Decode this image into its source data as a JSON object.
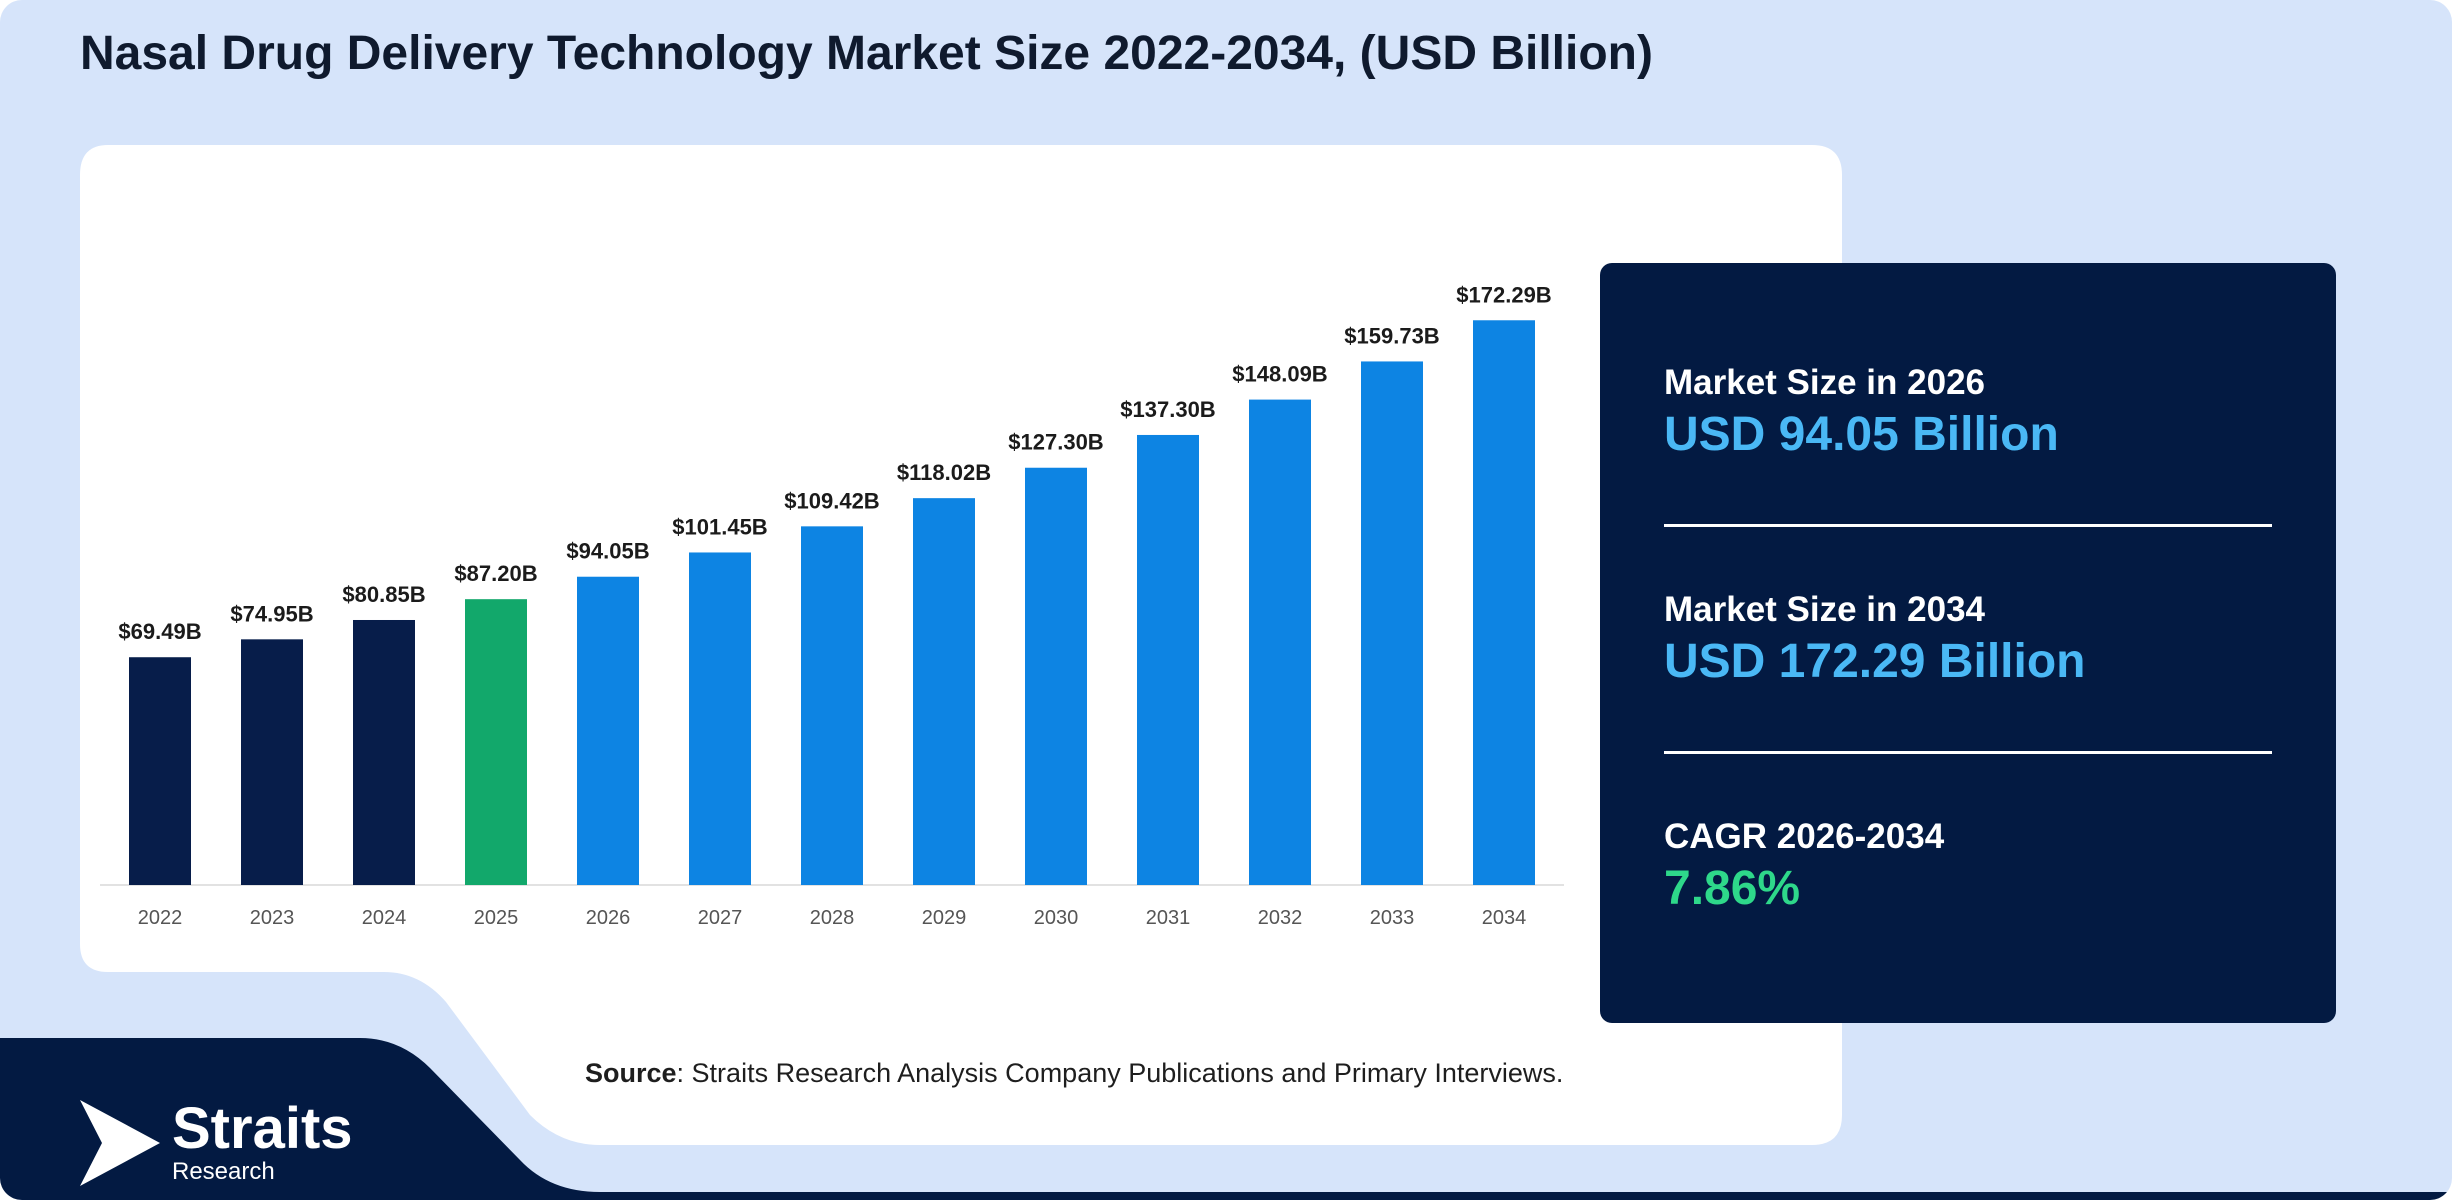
{
  "page": {
    "title": "Nasal Drug Delivery Technology Market Size 2022-2034, (USD Billion)"
  },
  "colors": {
    "background": "#d6e4fa",
    "navy": "#031a42",
    "historical_bar": "#071d4a",
    "base_year_bar": "#12a86b",
    "forecast_bar": "#0d84e3",
    "value_blue": "#4ab8f5",
    "cagr_green": "#2ed88a"
  },
  "chart_data": {
    "type": "bar",
    "title": "",
    "xlabel": "",
    "ylabel": "",
    "categories": [
      "2022",
      "2023",
      "2024",
      "2025",
      "2026",
      "2027",
      "2028",
      "2029",
      "2030",
      "2031",
      "2032",
      "2033",
      "2034"
    ],
    "values": [
      69.49,
      74.95,
      80.85,
      87.2,
      94.05,
      101.45,
      109.42,
      118.02,
      127.3,
      137.3,
      148.09,
      159.73,
      172.29
    ],
    "data_labels": [
      "$69.49B",
      "$74.95B",
      "$80.85B",
      "$87.20B",
      "$94.05B",
      "$101.45B",
      "$109.42B",
      "$118.02B",
      "$127.30B",
      "$137.30B",
      "$148.09B",
      "$159.73B",
      "$172.29B"
    ],
    "bar_colors": [
      "#071d4a",
      "#071d4a",
      "#071d4a",
      "#12a86b",
      "#0d84e3",
      "#0d84e3",
      "#0d84e3",
      "#0d84e3",
      "#0d84e3",
      "#0d84e3",
      "#0d84e3",
      "#0d84e3",
      "#0d84e3"
    ],
    "ylim": [
      0,
      180
    ],
    "grid": false,
    "legend": "none"
  },
  "stats": {
    "size_2026_label": "Market Size in 2026",
    "size_2026_value": "USD 94.05 Billion",
    "size_2034_label": "Market Size in 2034",
    "size_2034_value": "USD 172.29 Billion",
    "cagr_label": "CAGR 2026-2034",
    "cagr_value": "7.86%"
  },
  "source": {
    "label": "Source",
    "text": ": Straits Research Analysis Company Publications and Primary Interviews."
  },
  "logo": {
    "name": "Straits",
    "sub": "Research",
    "icon": "straits-arrow-icon"
  }
}
